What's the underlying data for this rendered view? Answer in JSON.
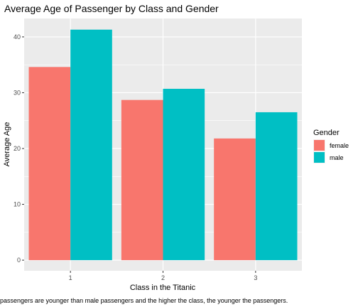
{
  "chart_data": {
    "type": "bar",
    "title": "Average Age of Passenger by Class and Gender",
    "xlabel": "Class in the Titanic",
    "ylabel": "Average Age",
    "caption": "passengers are younger than male passengers and the higher the class, the younger the passengers.",
    "categories": [
      "1",
      "2",
      "3"
    ],
    "series": [
      {
        "name": "female",
        "values": [
          34.6,
          28.7,
          21.8
        ],
        "color": "#F8766D"
      },
      {
        "name": "male",
        "values": [
          41.3,
          30.7,
          26.5
        ],
        "color": "#00BFC4"
      }
    ],
    "ylim": [
      -1.9,
      43.3
    ],
    "yticks": [
      0,
      10,
      20,
      30,
      40
    ],
    "legend": {
      "title": "Gender",
      "position": "right"
    },
    "grid": true,
    "panel_color": "#EBEBEB"
  }
}
